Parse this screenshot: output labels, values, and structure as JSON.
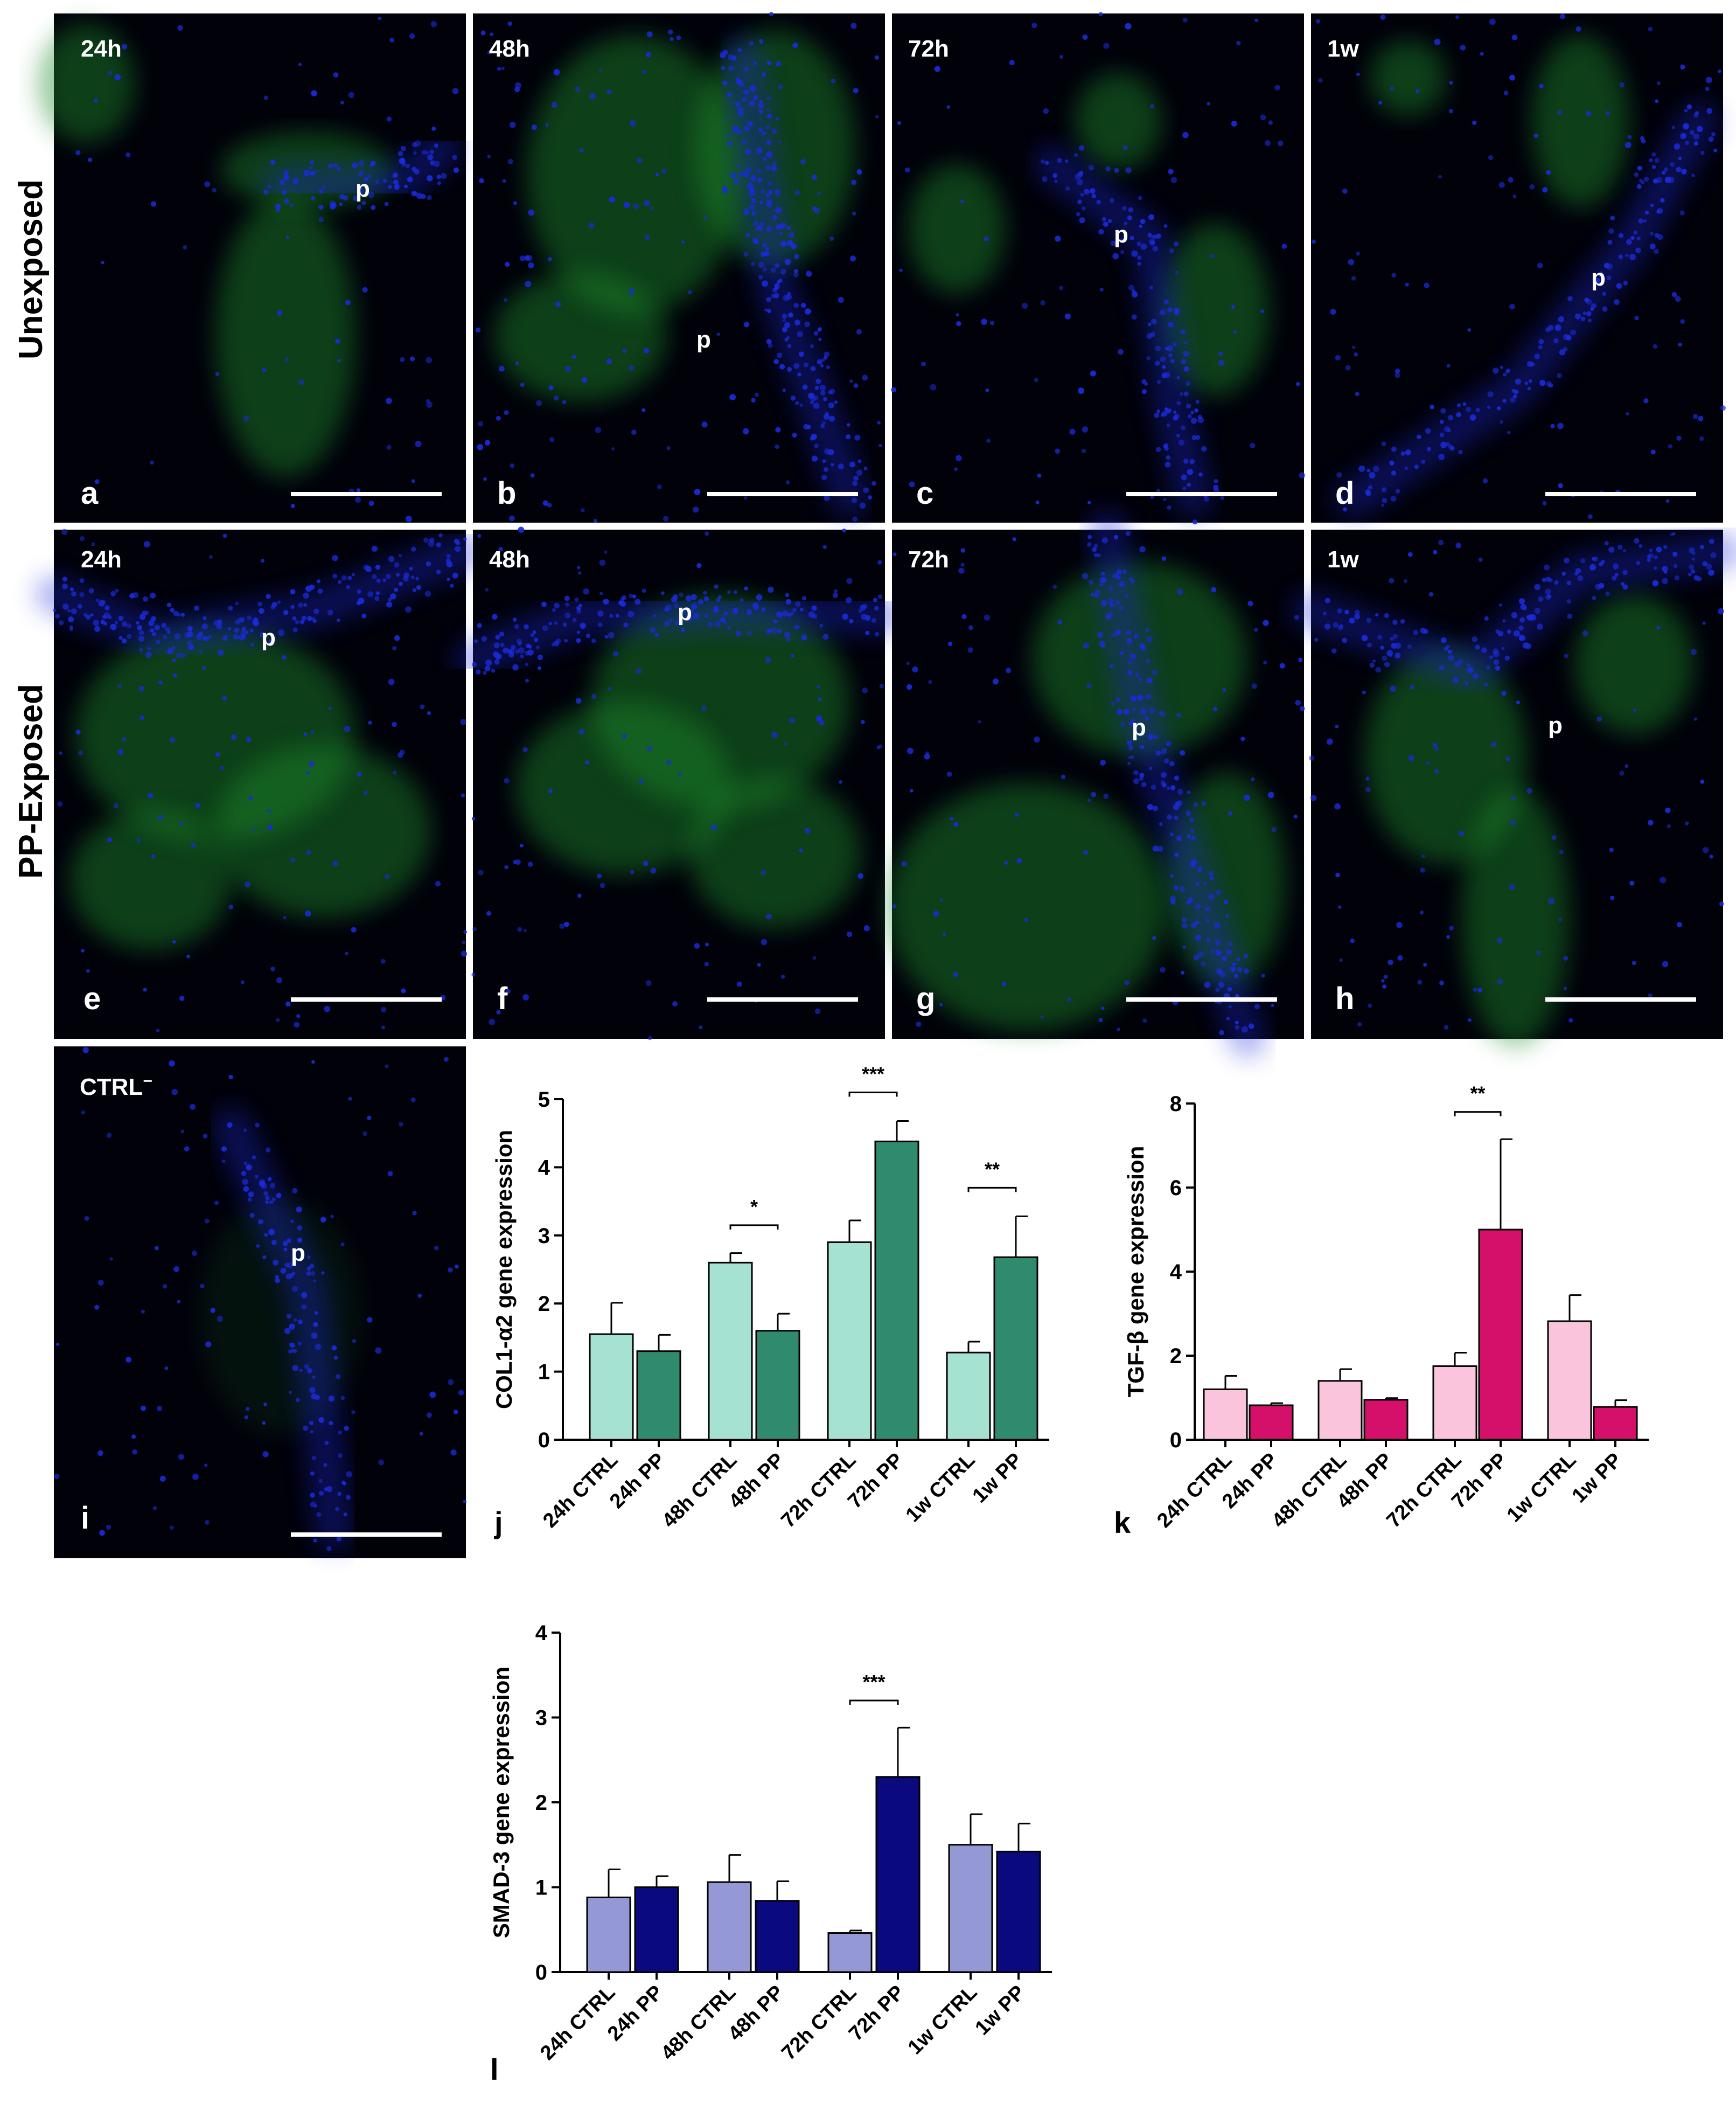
{
  "rows": [
    {
      "label": "Unexposed",
      "panels": [
        "a",
        "b",
        "c",
        "d"
      ]
    },
    {
      "label": "PP-Exposed",
      "panels": [
        "e",
        "f",
        "g",
        "h"
      ]
    }
  ],
  "micrographs": [
    {
      "letter": "a",
      "time": "24h",
      "marker": "p"
    },
    {
      "letter": "b",
      "time": "48h",
      "marker": "p"
    },
    {
      "letter": "c",
      "time": "72h",
      "marker": "p"
    },
    {
      "letter": "d",
      "time": "1w",
      "marker": "p"
    },
    {
      "letter": "e",
      "time": "24h",
      "marker": "p"
    },
    {
      "letter": "f",
      "time": "48h",
      "marker": "p"
    },
    {
      "letter": "g",
      "time": "72h",
      "marker": "p"
    },
    {
      "letter": "h",
      "time": "1w",
      "marker": "p"
    },
    {
      "letter": "i",
      "time": "CTRL",
      "time_sup": "−",
      "marker": "p"
    }
  ],
  "colors": {
    "micro_background": "#01010a",
    "nuclei": "#1a2bd8",
    "collagen": "#1f8a2a",
    "col_ctrl": "#a6e2d2",
    "col_pp": "#2f8a6e",
    "tgf_ctrl": "#f9c4dc",
    "tgf_pp": "#d4106a",
    "smad_ctrl": "#9499d6",
    "smad_pp": "#0a0a7e"
  },
  "chart_data": [
    {
      "id": "j",
      "type": "bar",
      "letter": "j",
      "ylabel": "COL1-α2 gene expression",
      "ylim": [
        0,
        5
      ],
      "yticks": [
        0,
        1,
        2,
        3,
        4,
        5
      ],
      "categories": [
        "24h CTRL",
        "24h PP",
        "48h CTRL",
        "48h PP",
        "72h CTRL",
        "72h PP",
        "1w CTRL",
        "1w PP"
      ],
      "values": [
        1.55,
        1.3,
        2.6,
        1.6,
        2.9,
        4.38,
        1.28,
        2.68
      ],
      "errors": [
        0.46,
        0.24,
        0.14,
        0.25,
        0.32,
        0.3,
        0.16,
        0.6
      ],
      "bar_colors": [
        "#a6e2d2",
        "#2f8a6e",
        "#a6e2d2",
        "#2f8a6e",
        "#a6e2d2",
        "#2f8a6e",
        "#a6e2d2",
        "#2f8a6e"
      ],
      "significance": [
        {
          "pair": [
            2,
            3
          ],
          "label": "*",
          "y": 3.15
        },
        {
          "pair": [
            4,
            5
          ],
          "label": "***",
          "y": 5.1
        },
        {
          "pair": [
            6,
            7
          ],
          "label": "**",
          "y": 3.7
        }
      ]
    },
    {
      "id": "k",
      "type": "bar",
      "letter": "k",
      "ylabel": "TGF-β gene expression",
      "ylim": [
        0,
        8
      ],
      "yticks": [
        0,
        2,
        4,
        6,
        8
      ],
      "categories": [
        "24h CTRL",
        "24h PP",
        "48h CTRL",
        "48h PP",
        "72h CTRL",
        "72h PP",
        "1w CTRL",
        "1w PP"
      ],
      "values": [
        1.2,
        0.82,
        1.4,
        0.95,
        1.75,
        5.0,
        2.82,
        0.78
      ],
      "errors": [
        0.32,
        0.05,
        0.28,
        0.04,
        0.32,
        2.15,
        0.62,
        0.16
      ],
      "bar_colors": [
        "#f9c4dc",
        "#d4106a",
        "#f9c4dc",
        "#d4106a",
        "#f9c4dc",
        "#d4106a",
        "#f9c4dc",
        "#d4106a"
      ],
      "significance": [
        {
          "pair": [
            4,
            5
          ],
          "label": "**",
          "y": 7.8
        }
      ]
    },
    {
      "id": "l",
      "type": "bar",
      "letter": "l",
      "ylabel": "SMAD-3 gene expression",
      "ylim": [
        0,
        4
      ],
      "yticks": [
        0,
        1,
        2,
        3,
        4
      ],
      "categories": [
        "24h CTRL",
        "24h PP",
        "48h CTRL",
        "48h PP",
        "72h CTRL",
        "72h PP",
        "1w CTRL",
        "1w PP"
      ],
      "values": [
        0.88,
        1.0,
        1.06,
        0.84,
        0.46,
        2.3,
        1.5,
        1.42
      ],
      "errors": [
        0.33,
        0.13,
        0.32,
        0.23,
        0.03,
        0.58,
        0.36,
        0.33
      ],
      "bar_colors": [
        "#9499d6",
        "#0a0a7e",
        "#9499d6",
        "#0a0a7e",
        "#9499d6",
        "#0a0a7e",
        "#9499d6",
        "#0a0a7e"
      ],
      "significance": [
        {
          "pair": [
            4,
            5
          ],
          "label": "***",
          "y": 3.2
        }
      ]
    }
  ]
}
